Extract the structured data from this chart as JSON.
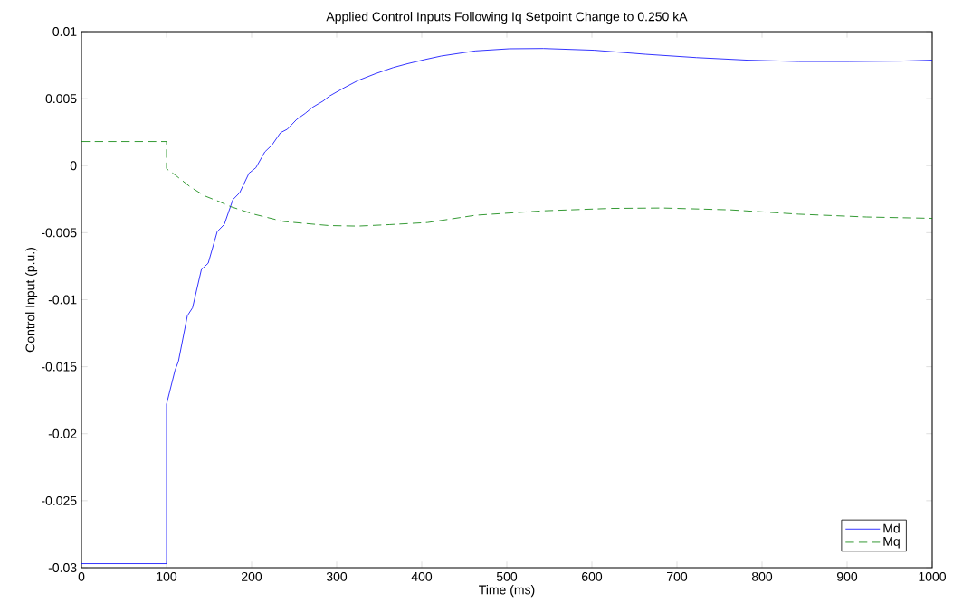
{
  "chart_data": {
    "type": "line",
    "title": "Applied Control Inputs Following Iq Setpoint Change to 0.250 kA",
    "xlabel": "Time (ms)",
    "ylabel": "Control Input (p.u.)",
    "xlim": [
      0,
      1000
    ],
    "ylim": [
      -0.03,
      0.01
    ],
    "xticks": [
      0,
      100,
      200,
      300,
      400,
      500,
      600,
      700,
      800,
      900,
      1000
    ],
    "yticks": [
      -0.03,
      -0.025,
      -0.02,
      -0.015,
      -0.01,
      -0.005,
      0,
      0.005,
      0.01
    ],
    "grid": false,
    "legend": "bottom right",
    "marker": "none",
    "series": [
      {
        "name": "Md",
        "color": "#0000ff",
        "line_style": "solid",
        "x": [
          0,
          100,
          100,
          110,
          114,
          124.5,
          130.6,
          141,
          149,
          159.6,
          167.9,
          178,
          186,
          197,
          205,
          215.5,
          224,
          234,
          242,
          253,
          263,
          271.5,
          284,
          292,
          308.5,
          325,
          346,
          366.6,
          383,
          404,
          423,
          463,
          503,
          543,
          603,
          663,
          723,
          783,
          843,
          903,
          963,
          1000
        ],
        "values": [
          -0.0297,
          -0.0297,
          -0.0178,
          -0.01527,
          -0.0146,
          -0.0112,
          -0.0106,
          -0.00775,
          -0.00728,
          -0.00492,
          -0.00438,
          -0.00254,
          -0.00202,
          -0.00056,
          -0.00016,
          0.00102,
          0.00154,
          0.00246,
          0.00272,
          0.00345,
          0.0039,
          0.00435,
          0.00482,
          0.00521,
          0.0058,
          0.00635,
          0.00687,
          0.00732,
          0.0076,
          0.00792,
          0.00818,
          0.00856,
          0.00872,
          0.00874,
          0.00861,
          0.00831,
          0.00806,
          0.00787,
          0.00777,
          0.00777,
          0.0078,
          0.00787
        ]
      },
      {
        "name": "Mq",
        "color": "#008000",
        "line_style": "dashed",
        "x": [
          0,
          100,
          100,
          110,
          128,
          145,
          163,
          175,
          202,
          238,
          291,
          325,
          362,
          407,
          463,
          543,
          623,
          683,
          763,
          843,
          923,
          1000
        ],
        "values": [
          0.0018,
          0.0018,
          -0.00023,
          -0.00069,
          -0.00159,
          -0.00226,
          -0.00271,
          -0.00305,
          -0.00361,
          -0.00417,
          -0.00447,
          -0.00451,
          -0.0044,
          -0.00424,
          -0.0037,
          -0.00337,
          -0.00319,
          -0.00316,
          -0.0033,
          -0.00362,
          -0.00383,
          -0.00393
        ]
      }
    ]
  }
}
